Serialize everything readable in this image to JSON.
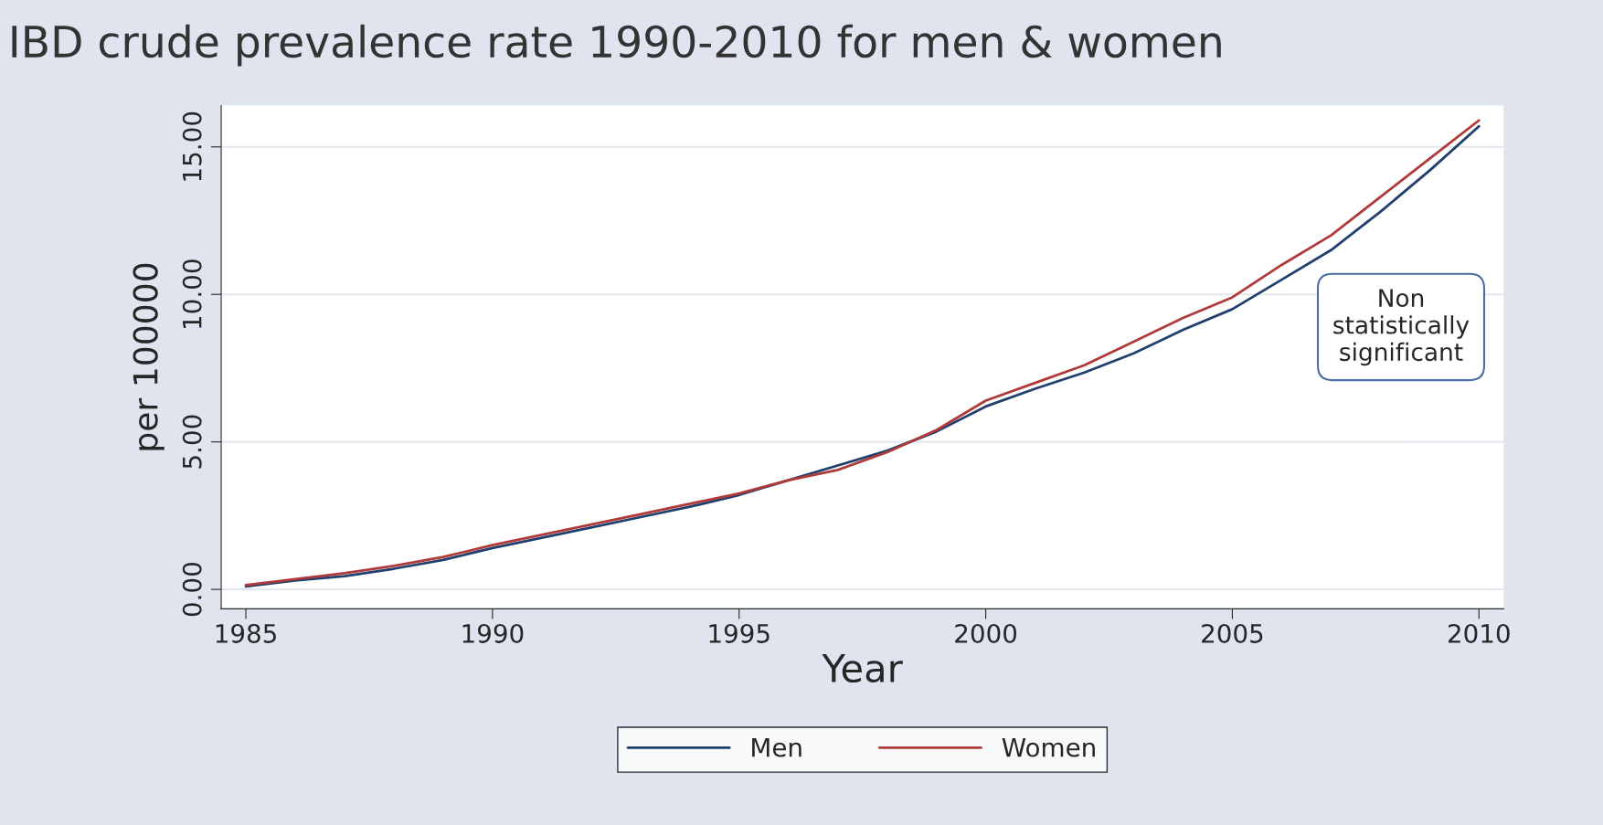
{
  "chart_data": {
    "type": "line",
    "title": "IBD crude prevalence rate 1990-2010 for men & women",
    "xlabel": "Year",
    "ylabel": "per 100000",
    "x": [
      1985,
      1986,
      1987,
      1988,
      1989,
      1990,
      1991,
      1992,
      1993,
      1994,
      1995,
      1996,
      1997,
      1998,
      1999,
      2000,
      2001,
      2002,
      2003,
      2004,
      2005,
      2006,
      2007,
      2008,
      2009,
      2010
    ],
    "series": [
      {
        "name": "Men",
        "color": "#1f3f6e",
        "values": [
          0.1,
          0.3,
          0.45,
          0.7,
          1.0,
          1.4,
          1.75,
          2.1,
          2.45,
          2.8,
          3.2,
          3.7,
          4.2,
          4.7,
          5.35,
          6.2,
          6.8,
          7.35,
          8.0,
          8.8,
          9.5,
          10.5,
          11.5,
          12.8,
          14.2,
          15.7
        ]
      },
      {
        "name": "Women",
        "color": "#b03a3a",
        "values": [
          0.15,
          0.35,
          0.55,
          0.8,
          1.1,
          1.5,
          1.85,
          2.2,
          2.55,
          2.9,
          3.25,
          3.7,
          4.05,
          4.65,
          5.4,
          6.4,
          7.0,
          7.6,
          8.4,
          9.2,
          9.9,
          11.0,
          12.0,
          13.3,
          14.6,
          15.9
        ]
      }
    ],
    "xlim": [
      1984.5,
      2010.5
    ],
    "ylim": [
      -0.66,
      16.4
    ],
    "xticks": [
      1985,
      1990,
      1995,
      2000,
      2005,
      2010
    ],
    "yticks": [
      {
        "value": 0,
        "label": "0.00"
      },
      {
        "value": 5,
        "label": "5.00"
      },
      {
        "value": 10,
        "label": "10.00"
      },
      {
        "value": 15,
        "label": "15.00"
      }
    ],
    "grid": "y",
    "legend": "bottom",
    "marker": "none",
    "line_style": "solid",
    "annotations": [
      "Non\nstatistically\nsignificant"
    ]
  }
}
